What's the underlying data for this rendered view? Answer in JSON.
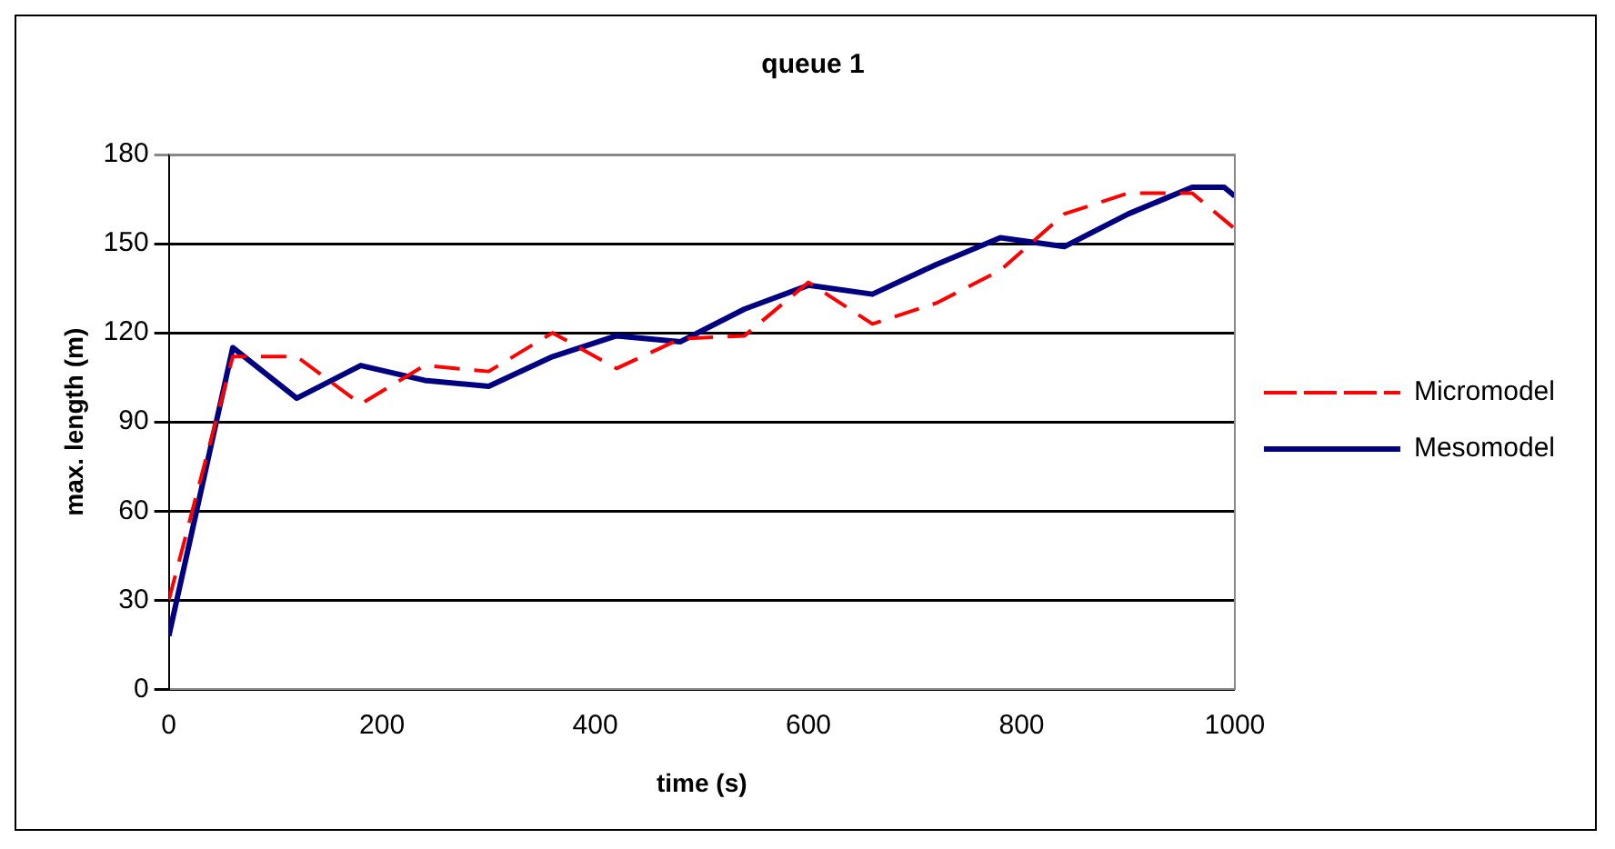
{
  "chart_data": {
    "type": "line",
    "title": "queue 1",
    "xlabel": "time (s)",
    "ylabel": "max. length (m)",
    "xlim": [
      0,
      1000
    ],
    "xticks": [
      0,
      200,
      400,
      600,
      800,
      1000
    ],
    "ylim": [
      0,
      180
    ],
    "yticks": [
      0,
      30,
      60,
      90,
      120,
      150,
      180
    ],
    "grid": "y",
    "legend": "right",
    "marker": "none",
    "series": [
      {
        "name": "Micromodel",
        "color": "#ff0000",
        "line_style": "dashed",
        "x": [
          0,
          60,
          120,
          180,
          240,
          300,
          360,
          420,
          480,
          540,
          600,
          660,
          720,
          780,
          840,
          900,
          960,
          1000
        ],
        "values": [
          30,
          112,
          112,
          96,
          109,
          107,
          120,
          108,
          118,
          119,
          137,
          123,
          130,
          141,
          160,
          167,
          167,
          155
        ]
      },
      {
        "name": "Mesomodel",
        "color": "#000080",
        "line_style": "solid",
        "x": [
          0,
          60,
          120,
          180,
          240,
          300,
          360,
          420,
          480,
          540,
          600,
          660,
          720,
          780,
          840,
          900,
          960,
          990,
          1000
        ],
        "values": [
          18,
          115,
          98,
          109,
          104,
          102,
          112,
          119,
          117,
          128,
          136,
          133,
          143,
          152,
          149,
          160,
          169,
          169,
          166
        ]
      }
    ]
  }
}
